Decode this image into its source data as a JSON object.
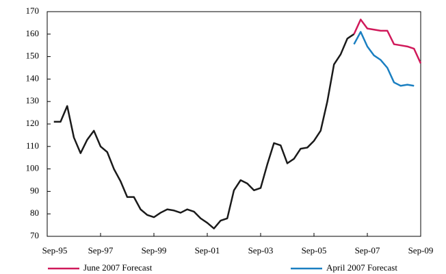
{
  "chart_data": {
    "type": "line",
    "x": [
      1995.92,
      1996.17,
      1996.42,
      1996.67,
      1996.92,
      1997.17,
      1997.42,
      1997.67,
      1997.92,
      1998.17,
      1998.42,
      1998.67,
      1998.92,
      1999.17,
      1999.42,
      1999.67,
      1999.92,
      2000.17,
      2000.42,
      2000.67,
      2000.92,
      2001.17,
      2001.42,
      2001.67,
      2001.92,
      2002.17,
      2002.42,
      2002.67,
      2002.92,
      2003.17,
      2003.42,
      2003.67,
      2003.92,
      2004.17,
      2004.42,
      2004.67,
      2004.92,
      2005.17,
      2005.42,
      2005.67,
      2005.92,
      2006.17,
      2006.42,
      2006.67,
      2006.92,
      2007.17,
      2007.42,
      2007.67,
      2007.92,
      2008.17,
      2008.42,
      2008.67,
      2008.92,
      2009.17,
      2009.42,
      2009.67
    ],
    "series": [
      {
        "color": "#1a1a1a",
        "values": [
          121,
          121,
          128,
          114,
          107,
          113,
          117,
          110,
          107.5,
          100,
          94.5,
          87.5,
          87.5,
          82,
          79.5,
          78.5,
          80.5,
          82,
          81.5,
          80.5,
          82,
          81,
          78,
          76,
          73.5,
          77,
          78,
          90.5,
          95,
          93.5,
          90.5,
          91.5,
          102,
          111.5,
          110.5,
          102.5,
          104.5,
          109,
          109.5,
          112.5,
          117,
          130,
          146.5,
          151,
          158,
          160,
          null,
          null,
          null,
          null,
          null,
          null,
          null,
          null,
          null,
          null
        ]
      },
      {
        "name": "June 2007 Forecast",
        "color": "#d0195a",
        "values": [
          null,
          null,
          null,
          null,
          null,
          null,
          null,
          null,
          null,
          null,
          null,
          null,
          null,
          null,
          null,
          null,
          null,
          null,
          null,
          null,
          null,
          null,
          null,
          null,
          null,
          null,
          null,
          null,
          null,
          null,
          null,
          null,
          null,
          null,
          null,
          null,
          null,
          null,
          null,
          null,
          null,
          null,
          null,
          null,
          null,
          160,
          166.5,
          162.5,
          162,
          161.5,
          161.5,
          155.5,
          155,
          154.5,
          153.5,
          147
        ]
      },
      {
        "name": "April 2007 Forecast",
        "color": "#1a7fc1",
        "values": [
          null,
          null,
          null,
          null,
          null,
          null,
          null,
          null,
          null,
          null,
          null,
          null,
          null,
          null,
          null,
          null,
          null,
          null,
          null,
          null,
          null,
          null,
          null,
          null,
          null,
          null,
          null,
          null,
          null,
          null,
          null,
          null,
          null,
          null,
          null,
          null,
          null,
          null,
          null,
          null,
          null,
          null,
          null,
          null,
          null,
          155.5,
          161,
          154.5,
          150.5,
          148.5,
          145,
          138.5,
          137,
          137.5,
          137,
          null
        ]
      }
    ],
    "xlim": [
      1995.67,
      2009.67
    ],
    "xticks": [
      {
        "value": 1995.67,
        "label": "Sep-95"
      },
      {
        "value": 1997.67,
        "label": "Sep-97"
      },
      {
        "value": 1999.67,
        "label": "Sep-99"
      },
      {
        "value": 2001.67,
        "label": "Sep-01"
      },
      {
        "value": 2003.67,
        "label": "Sep-03"
      },
      {
        "value": 2005.67,
        "label": "Sep-05"
      },
      {
        "value": 2007.67,
        "label": "Sep-07"
      },
      {
        "value": 2009.67,
        "label": "Sep-09"
      }
    ],
    "ylim": [
      70,
      170
    ],
    "yticks": [
      70,
      80,
      90,
      100,
      110,
      120,
      130,
      140,
      150,
      160,
      170
    ]
  }
}
